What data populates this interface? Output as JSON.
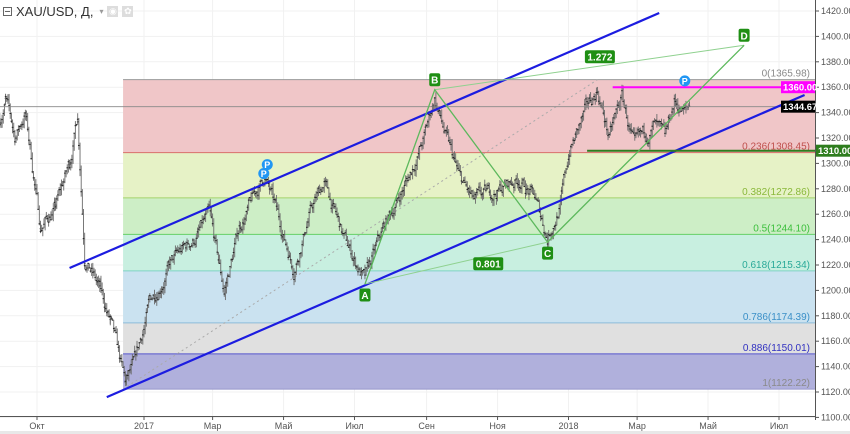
{
  "header": {
    "symbol_title": "XAU/USD, Д,",
    "caret_icon": "▾",
    "eye_icon": "◉",
    "gear_icon": "✿"
  },
  "chart_data": {
    "type": "line",
    "subtype": "ohlc-bars",
    "title": "XAU/USD, Д",
    "ylim": [
      1100,
      1420
    ],
    "y_ticks": [
      "1100.00",
      "1120.00",
      "1140.00",
      "1160.00",
      "1180.00",
      "1200.00",
      "1220.00",
      "1240.00",
      "1260.00",
      "1280.00",
      "1300.00",
      "1320.00",
      "1340.00",
      "1360.00",
      "1380.00",
      "1400.00",
      "1420.00"
    ],
    "y_tick_values": [
      1100,
      1120,
      1140,
      1160,
      1180,
      1200,
      1220,
      1240,
      1260,
      1280,
      1300,
      1320,
      1340,
      1360,
      1380,
      1400,
      1420
    ],
    "x_ticks": [
      {
        "label": "Окт",
        "date": "2016-10-01"
      },
      {
        "label": "2017",
        "date": "2017-01-01"
      },
      {
        "label": "Мар",
        "date": "2017-03-01"
      },
      {
        "label": "Май",
        "date": "2017-05-01"
      },
      {
        "label": "Июл",
        "date": "2017-07-01"
      },
      {
        "label": "Сен",
        "date": "2017-09-01"
      },
      {
        "label": "Ноя",
        "date": "2017-11-01"
      },
      {
        "label": "2018",
        "date": "2018-01-01"
      },
      {
        "label": "Мар",
        "date": "2018-03-01"
      },
      {
        "label": "Май",
        "date": "2018-05-01"
      },
      {
        "label": "Июл",
        "date": "2018-07-01"
      }
    ],
    "price_path": [
      [
        "2016-08-30",
        1335
      ],
      [
        "2016-09-04",
        1350
      ],
      [
        "2016-09-12",
        1320
      ],
      [
        "2016-09-21",
        1340
      ],
      [
        "2016-10-04",
        1250
      ],
      [
        "2016-10-17",
        1265
      ],
      [
        "2016-10-29",
        1300
      ],
      [
        "2016-11-05",
        1338
      ],
      [
        "2016-11-11",
        1230
      ],
      [
        "2016-11-24",
        1200
      ],
      [
        "2016-12-03",
        1175
      ],
      [
        "2016-12-16",
        1125
      ],
      [
        "2016-12-24",
        1140
      ],
      [
        "2017-01-06",
        1190
      ],
      [
        "2017-01-23",
        1220
      ],
      [
        "2017-02-13",
        1240
      ],
      [
        "2017-02-26",
        1258
      ],
      [
        "2017-03-11",
        1198
      ],
      [
        "2017-03-24",
        1250
      ],
      [
        "2017-04-15",
        1290
      ],
      [
        "2017-04-28",
        1252
      ],
      [
        "2017-05-10",
        1218
      ],
      [
        "2017-05-23",
        1260
      ],
      [
        "2017-06-05",
        1285
      ],
      [
        "2017-06-22",
        1240
      ],
      [
        "2017-07-10",
        1208
      ],
      [
        "2017-07-27",
        1250
      ],
      [
        "2017-08-17",
        1290
      ],
      [
        "2017-08-30",
        1320
      ],
      [
        "2017-09-08",
        1352
      ],
      [
        "2017-09-17",
        1322
      ],
      [
        "2017-09-29",
        1288
      ],
      [
        "2017-10-12",
        1268
      ],
      [
        "2017-11-03",
        1280
      ],
      [
        "2017-11-20",
        1288
      ],
      [
        "2017-12-03",
        1272
      ],
      [
        "2017-12-14",
        1242
      ],
      [
        "2017-12-25",
        1268
      ],
      [
        "2018-01-02",
        1310
      ],
      [
        "2018-01-15",
        1338
      ],
      [
        "2018-01-26",
        1358
      ],
      [
        "2018-02-05",
        1320
      ],
      [
        "2018-02-16",
        1352
      ],
      [
        "2018-02-27",
        1310
      ],
      [
        "2018-03-16",
        1330
      ],
      [
        "2018-03-25",
        1315
      ],
      [
        "2018-04-02",
        1348
      ],
      [
        "2018-04-11",
        1340
      ],
      [
        "2018-04-16",
        1345
      ]
    ],
    "last_price": {
      "value": 1344.67,
      "label": "1344.67"
    },
    "fibonacci": {
      "start_date": "2016-12-14",
      "trend": [
        [
          "2016-12-14",
          1122.22
        ],
        [
          "2018-01-26",
          1365.98
        ]
      ],
      "levels": [
        {
          "ratio": 0,
          "price": 1365.98,
          "label": "0(1365.98)",
          "line": "#999999",
          "fill": "#f0c6c8",
          "text": "#8a8a8a"
        },
        {
          "ratio": 0.236,
          "price": 1308.45,
          "label": "0.236(1308.45)",
          "line": "#d9706b",
          "fill": "#e6f2c6",
          "text": "#c0504d"
        },
        {
          "ratio": 0.382,
          "price": 1272.86,
          "label": "0.382(1272.86)",
          "line": "#a3d36b",
          "fill": "#cdeec6",
          "text": "#8ab83a"
        },
        {
          "ratio": 0.5,
          "price": 1244.1,
          "label": "0.5(1244.10)",
          "line": "#66d066",
          "fill": "#c8efe0",
          "text": "#3cbf3c"
        },
        {
          "ratio": 0.618,
          "price": 1215.34,
          "label": "0.618(1215.34)",
          "line": "#7fd3c4",
          "fill": "#cae2f0",
          "text": "#2aa998"
        },
        {
          "ratio": 0.786,
          "price": 1174.39,
          "label": "0.786(1174.39)",
          "line": "#8dbbd9",
          "fill": "#e0e0e0",
          "text": "#3a8fc7"
        },
        {
          "ratio": 0.886,
          "price": 1150.01,
          "label": "0.886(1150.01)",
          "line": "#5555cc",
          "fill": "#b0b0dc",
          "text": "#3030c0"
        },
        {
          "ratio": 1,
          "price": 1122.22,
          "label": "1(1122.22)",
          "line": "#9999cc",
          "fill": null,
          "text": "#8a8a8a"
        }
      ]
    },
    "channel": {
      "color": "#1c1ce0",
      "upper": [
        [
          "2016-10-29",
          1217.6
        ],
        [
          "2018-03-20",
          1418.4
        ]
      ],
      "lower": [
        [
          "2016-11-30",
          1116.0
        ],
        [
          "2018-07-23",
          1353.9
        ]
      ]
    },
    "abcd": {
      "color": "#5cb85c",
      "points": [
        {
          "label": "A",
          "date": "2017-07-10",
          "price": 1205,
          "pos": "below"
        },
        {
          "label": "B",
          "date": "2017-09-08",
          "price": 1358,
          "pos": "above"
        },
        {
          "label": "C",
          "date": "2017-12-14",
          "price": 1238,
          "pos": "below"
        },
        {
          "label": "D",
          "date": "2018-06-01",
          "price": 1393,
          "pos": "above"
        }
      ],
      "ratios": [
        {
          "label": "0.801",
          "date": "2017-10-24",
          "price": 1221
        },
        {
          "label": "1.272",
          "date": "2018-01-28",
          "price": 1384
        }
      ]
    },
    "horizontal_lines": [
      {
        "price": 1360.0,
        "label": "1360.00",
        "color": "#ff00ff",
        "start": "2018-02-08"
      },
      {
        "price": 1310.0,
        "label": "1310.00",
        "color": "#2e7d1e",
        "start": "2018-01-17"
      }
    ],
    "pivot_markers": [
      {
        "label": "P",
        "date": "2017-04-17",
        "price": 1299
      },
      {
        "label": "P",
        "date": "2017-04-14",
        "price": 1292
      },
      {
        "label": "P",
        "date": "2018-04-11",
        "price": 1365
      }
    ]
  }
}
